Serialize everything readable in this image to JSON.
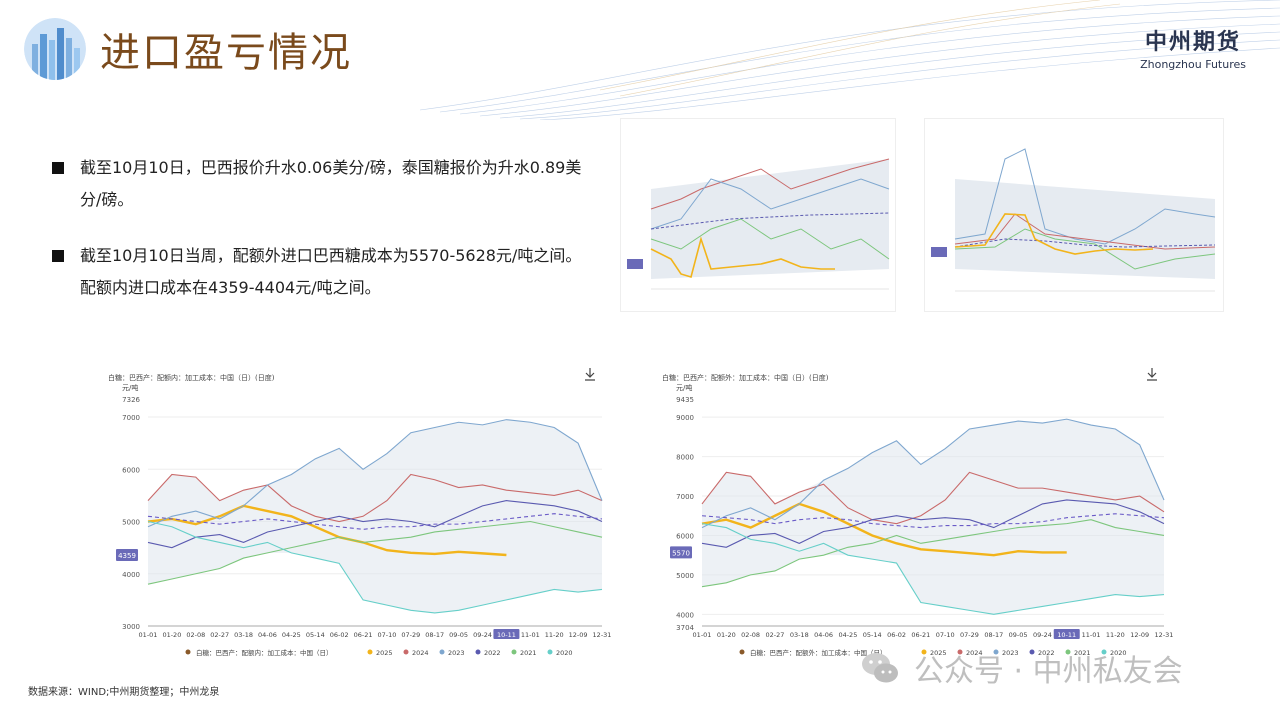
{
  "header": {
    "title": "进口盈亏情况",
    "brand_cn": "中州期货",
    "brand_en": "Zhongzhou Futures"
  },
  "bullets": [
    "截至10月10日，巴西报价升水0.06美分/磅，泰国糖报价为升水0.89美分/磅。",
    "截至10月10日当周，配额外进口巴西糖成本为5570-5628元/吨之间。配额内进口成本在4359-4404元/吨之间。"
  ],
  "footer": {
    "source": "数据来源：WIND;中州期货整理；中州龙泉",
    "wechat": "公众号 · 中州私友会"
  },
  "colors": {
    "2025": "#f2b41b",
    "2024": "#c96a6a",
    "2023": "#7fa7cf",
    "2022": "#5a5ab0",
    "2021": "#7dc67d",
    "2020": "#66cfc9",
    "band": "#dfe5ec",
    "title": "#7a4a1c"
  },
  "chart_data": [
    {
      "type": "line",
      "title": "白糖：巴西产：配额内：加工成本：中国（日）(日度)",
      "ylabel": "元/吨",
      "ylim": [
        3000,
        7326
      ],
      "yticks": [
        3000,
        4000,
        5000,
        6000,
        7000
      ],
      "top_label": "7326",
      "current_label": "4359",
      "x_labels": [
        "01-01",
        "01-20",
        "02-08",
        "02-27",
        "03-18",
        "04-06",
        "04-25",
        "05-14",
        "06-02",
        "06-21",
        "07-10",
        "07-29",
        "08-17",
        "09-05",
        "09-24",
        "10-11",
        "11-01",
        "11-20",
        "12-09",
        "12-31"
      ],
      "highlight_x": "10-11",
      "legend_title": "白糖：巴西产：配额内：加工成本：中国（日）",
      "legend": [
        "2025",
        "2024",
        "2023",
        "2022",
        "2021",
        "2020"
      ],
      "series": [
        {
          "name": "2025",
          "values": [
            5000,
            5050,
            4950,
            5100,
            5300,
            5200,
            5100,
            4900,
            4700,
            4600,
            4450,
            4400,
            4380,
            4420,
            4390,
            4359
          ]
        },
        {
          "name": "2024",
          "values": [
            5400,
            5900,
            5850,
            5400,
            5600,
            5700,
            5300,
            5100,
            5000,
            5100,
            5400,
            5900,
            5800,
            5650,
            5700,
            5600,
            5550,
            5500,
            5600,
            5400
          ]
        },
        {
          "name": "2023",
          "values": [
            4900,
            5100,
            5200,
            5050,
            5300,
            5700,
            5900,
            6200,
            6400,
            6000,
            6300,
            6700,
            6800,
            6900,
            6850,
            6950,
            6900,
            6800,
            6500,
            5400
          ]
        },
        {
          "name": "2022",
          "values": [
            4600,
            4500,
            4700,
            4750,
            4600,
            4800,
            4900,
            5000,
            5100,
            5000,
            5050,
            5000,
            4900,
            5100,
            5300,
            5400,
            5350,
            5300,
            5200,
            5000
          ]
        },
        {
          "name": "2021",
          "values": [
            3800,
            3900,
            4000,
            4100,
            4300,
            4400,
            4500,
            4600,
            4700,
            4600,
            4650,
            4700,
            4800,
            4850,
            4900,
            4950,
            5000,
            4900,
            4800,
            4700
          ]
        },
        {
          "name": "2020",
          "values": [
            5000,
            4900,
            4700,
            4600,
            4500,
            4600,
            4400,
            4300,
            4200,
            3500,
            3400,
            3300,
            3250,
            3300,
            3400,
            3500,
            3600,
            3700,
            3650,
            3700
          ]
        },
        {
          "name": "avg",
          "values": [
            5100,
            5050,
            5000,
            4950,
            5000,
            5050,
            5000,
            4950,
            4900,
            4850,
            4900,
            4900,
            4950,
            4950,
            5000,
            5050,
            5100,
            5150,
            5100,
            5050
          ]
        }
      ]
    },
    {
      "type": "line",
      "title": "白糖：巴西产：配额外：加工成本：中国（日）(日度)",
      "ylabel": "元/吨",
      "ylim": [
        3704,
        9435
      ],
      "yticks": [
        4000,
        5000,
        6000,
        7000,
        8000,
        9000
      ],
      "top_label": "9435",
      "bottom_label": "3704",
      "current_label": "5570",
      "x_labels": [
        "01-01",
        "01-20",
        "02-08",
        "02-27",
        "03-18",
        "04-06",
        "04-25",
        "05-14",
        "06-02",
        "06-21",
        "07-10",
        "07-29",
        "08-17",
        "09-05",
        "09-24",
        "10-11",
        "11-01",
        "11-20",
        "12-09",
        "12-31"
      ],
      "highlight_x": "10-11",
      "legend_title": "白糖：巴西产：配额外：加工成本：中国（日）",
      "legend": [
        "2025",
        "2024",
        "2023",
        "2022",
        "2021",
        "2020"
      ],
      "series": [
        {
          "name": "2025",
          "values": [
            6300,
            6400,
            6200,
            6500,
            6800,
            6600,
            6300,
            6000,
            5800,
            5650,
            5600,
            5550,
            5500,
            5600,
            5570,
            5570
          ]
        },
        {
          "name": "2024",
          "values": [
            6800,
            7600,
            7500,
            6800,
            7100,
            7300,
            6700,
            6400,
            6300,
            6500,
            6900,
            7600,
            7400,
            7200,
            7200,
            7100,
            7000,
            6900,
            7000,
            6600
          ]
        },
        {
          "name": "2023",
          "values": [
            6200,
            6500,
            6700,
            6400,
            6800,
            7400,
            7700,
            8100,
            8400,
            7800,
            8200,
            8700,
            8800,
            8900,
            8850,
            8950,
            8800,
            8700,
            8300,
            6900
          ]
        },
        {
          "name": "2022",
          "values": [
            5800,
            5700,
            6000,
            6050,
            5800,
            6100,
            6200,
            6400,
            6500,
            6400,
            6450,
            6400,
            6200,
            6500,
            6800,
            6900,
            6850,
            6800,
            6600,
            6300
          ]
        },
        {
          "name": "2021",
          "values": [
            4700,
            4800,
            5000,
            5100,
            5400,
            5500,
            5700,
            5800,
            6000,
            5800,
            5900,
            6000,
            6100,
            6200,
            6250,
            6300,
            6400,
            6200,
            6100,
            6000
          ]
        },
        {
          "name": "2020",
          "values": [
            6300,
            6200,
            5900,
            5800,
            5600,
            5800,
            5500,
            5400,
            5300,
            4300,
            4200,
            4100,
            4000,
            4100,
            4200,
            4300,
            4400,
            4500,
            4450,
            4500
          ]
        },
        {
          "name": "avg",
          "values": [
            6500,
            6450,
            6400,
            6300,
            6400,
            6450,
            6400,
            6300,
            6250,
            6200,
            6250,
            6250,
            6300,
            6300,
            6350,
            6450,
            6500,
            6550,
            6500,
            6450
          ]
        }
      ]
    }
  ]
}
